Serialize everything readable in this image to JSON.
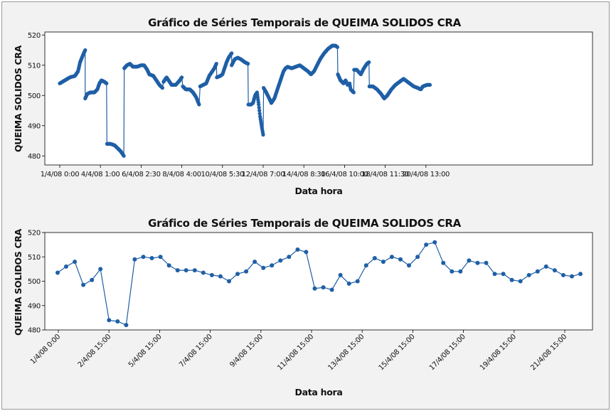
{
  "colors": {
    "series": "#1f5fa6",
    "background": "#f2f2f2",
    "plot_bg": "#ffffff"
  },
  "chart_data": [
    {
      "type": "line",
      "title": "Gráfico de Séries Temporais de QUEIMA SOLIDOS CRA",
      "xlabel": "Data hora",
      "ylabel": "QUEIMA SOLIDOS CRA",
      "xticks": [
        "1/4/08 0:00",
        "4/4/08 1:00",
        "6/4/08 2:30",
        "8/4/08 4:00",
        "10/4/08 5:30",
        "12/4/08 7:00",
        "14/4/08 8:30",
        "16/4/08 10:00",
        "18/4/08 11:30",
        "20/4/08 13:00"
      ],
      "yticks": [
        480,
        490,
        500,
        510,
        520
      ],
      "ylim": [
        477,
        521
      ],
      "grid": false,
      "segments": [
        [
          [
            0,
            504
          ],
          [
            0.25,
            505
          ],
          [
            0.5,
            506
          ],
          [
            0.75,
            506.5
          ],
          [
            0.9,
            508
          ],
          [
            1.0,
            511
          ],
          [
            1.15,
            513.5
          ],
          [
            1.25,
            515
          ]
        ],
        [
          [
            1.25,
            499
          ],
          [
            1.35,
            500.5
          ],
          [
            1.5,
            501
          ],
          [
            1.7,
            501
          ],
          [
            1.85,
            502
          ],
          [
            1.95,
            504
          ],
          [
            2.05,
            505
          ],
          [
            2.2,
            504.5
          ],
          [
            2.3,
            504
          ]
        ],
        [
          [
            2.32,
            484
          ],
          [
            2.5,
            484
          ],
          [
            2.7,
            483.5
          ],
          [
            2.85,
            482.5
          ],
          [
            3.0,
            481.5
          ],
          [
            3.15,
            480
          ]
        ],
        [
          [
            3.17,
            509
          ],
          [
            3.3,
            510
          ],
          [
            3.45,
            510.5
          ],
          [
            3.6,
            509.5
          ],
          [
            3.8,
            509.5
          ],
          [
            4.0,
            510
          ],
          [
            4.15,
            510
          ],
          [
            4.3,
            508.5
          ],
          [
            4.4,
            507
          ],
          [
            4.6,
            506.5
          ],
          [
            4.75,
            505
          ],
          [
            4.9,
            503.5
          ],
          [
            5.05,
            502.5
          ]
        ],
        [
          [
            5.1,
            504.5
          ],
          [
            5.25,
            506
          ],
          [
            5.35,
            505
          ],
          [
            5.5,
            503.5
          ],
          [
            5.7,
            503.5
          ],
          [
            5.9,
            505
          ],
          [
            6.0,
            506
          ]
        ],
        [
          [
            6.05,
            503
          ],
          [
            6.2,
            502
          ],
          [
            6.4,
            502
          ],
          [
            6.55,
            501
          ],
          [
            6.7,
            499.5
          ],
          [
            6.85,
            497
          ]
        ],
        [
          [
            6.9,
            503
          ],
          [
            7.05,
            503.5
          ],
          [
            7.2,
            504
          ],
          [
            7.35,
            506.5
          ],
          [
            7.5,
            508
          ],
          [
            7.6,
            509
          ],
          [
            7.7,
            510.5
          ]
        ],
        [
          [
            7.72,
            506
          ],
          [
            7.9,
            506.5
          ],
          [
            8.0,
            507
          ],
          [
            8.1,
            509
          ],
          [
            8.2,
            511
          ],
          [
            8.3,
            512.5
          ],
          [
            8.45,
            514
          ]
        ],
        [
          [
            8.45,
            510
          ],
          [
            8.6,
            512
          ],
          [
            8.75,
            512.5
          ],
          [
            8.9,
            512
          ],
          [
            9.1,
            511
          ],
          [
            9.25,
            510.5
          ]
        ],
        [
          [
            9.27,
            497
          ],
          [
            9.4,
            497
          ],
          [
            9.5,
            497.5
          ],
          [
            9.6,
            500
          ],
          [
            9.7,
            501
          ],
          [
            9.78,
            497
          ],
          [
            9.85,
            493
          ],
          [
            9.92,
            490
          ],
          [
            10.0,
            487
          ]
        ],
        [
          [
            10.02,
            502.5
          ],
          [
            10.15,
            501
          ],
          [
            10.3,
            499
          ],
          [
            10.4,
            497.5
          ],
          [
            10.55,
            499
          ],
          [
            10.7,
            502
          ],
          [
            10.8,
            504
          ],
          [
            10.9,
            506
          ],
          [
            11.0,
            508
          ],
          [
            11.1,
            509
          ],
          [
            11.2,
            509.5
          ],
          [
            11.4,
            509
          ],
          [
            11.6,
            509.5
          ],
          [
            11.8,
            510
          ],
          [
            12.0,
            509
          ],
          [
            12.2,
            508
          ],
          [
            12.35,
            507
          ],
          [
            12.5,
            508
          ],
          [
            12.65,
            510
          ],
          [
            12.8,
            512
          ],
          [
            13.0,
            514
          ],
          [
            13.2,
            515.5
          ],
          [
            13.4,
            516.5
          ],
          [
            13.55,
            516.5
          ],
          [
            13.65,
            516
          ]
        ],
        [
          [
            13.67,
            507
          ],
          [
            13.8,
            505
          ],
          [
            13.95,
            504
          ],
          [
            14.05,
            505
          ],
          [
            14.15,
            503.5
          ],
          [
            14.25,
            504
          ],
          [
            14.3,
            502
          ],
          [
            14.45,
            501
          ]
        ],
        [
          [
            14.47,
            508.5
          ],
          [
            14.6,
            508.5
          ],
          [
            14.8,
            507
          ],
          [
            14.95,
            509
          ],
          [
            15.1,
            510.5
          ],
          [
            15.2,
            511
          ]
        ],
        [
          [
            15.22,
            503
          ],
          [
            15.4,
            503
          ],
          [
            15.6,
            502
          ],
          [
            15.8,
            500.5
          ],
          [
            15.95,
            499
          ],
          [
            16.1,
            500
          ],
          [
            16.3,
            502
          ],
          [
            16.5,
            503.5
          ],
          [
            16.7,
            504.5
          ],
          [
            16.9,
            505.5
          ],
          [
            17.0,
            505
          ],
          [
            17.2,
            504
          ],
          [
            17.4,
            503
          ],
          [
            17.6,
            502.5
          ],
          [
            17.75,
            502
          ],
          [
            17.85,
            503
          ],
          [
            18.05,
            503.5
          ],
          [
            18.2,
            503.5
          ]
        ]
      ]
    },
    {
      "type": "line",
      "title": "Gráfico de Séries Temporais de QUEIMA SOLIDOS CRA",
      "xlabel": "Data hora",
      "ylabel": "QUEIMA SOLIDOS CRA",
      "xticks": [
        "1/4/08 0:00",
        "2/4/08 15:00",
        "5/4/08 15:00",
        "7/4/08 15:00",
        "9/4/08 15:00",
        "11/4/08 15:00",
        "13/4/08 15:00",
        "15/4/08 15:00",
        "17/4/08 15:00",
        "19/4/08 15:00",
        "21/4/08 15:00"
      ],
      "yticks": [
        480,
        490,
        500,
        510,
        520
      ],
      "ylim": [
        480,
        520
      ],
      "grid": false,
      "values": [
        503.5,
        506,
        508,
        498.5,
        500.5,
        505,
        484,
        483.5,
        482,
        509,
        510,
        509.5,
        510,
        506.5,
        504.5,
        504.5,
        504.5,
        503.5,
        502.5,
        502,
        500,
        503,
        504,
        508,
        505.5,
        506.5,
        508.5,
        510,
        513,
        512,
        497,
        497.5,
        496.5,
        502.5,
        499,
        500,
        506.5,
        509.5,
        508,
        510,
        509,
        506.5,
        510,
        515,
        516,
        507.5,
        504,
        504,
        508.5,
        507.5,
        507.5,
        503,
        503,
        500.5,
        500,
        502.5,
        504,
        506,
        504.5,
        502.5,
        502,
        503
      ]
    }
  ]
}
